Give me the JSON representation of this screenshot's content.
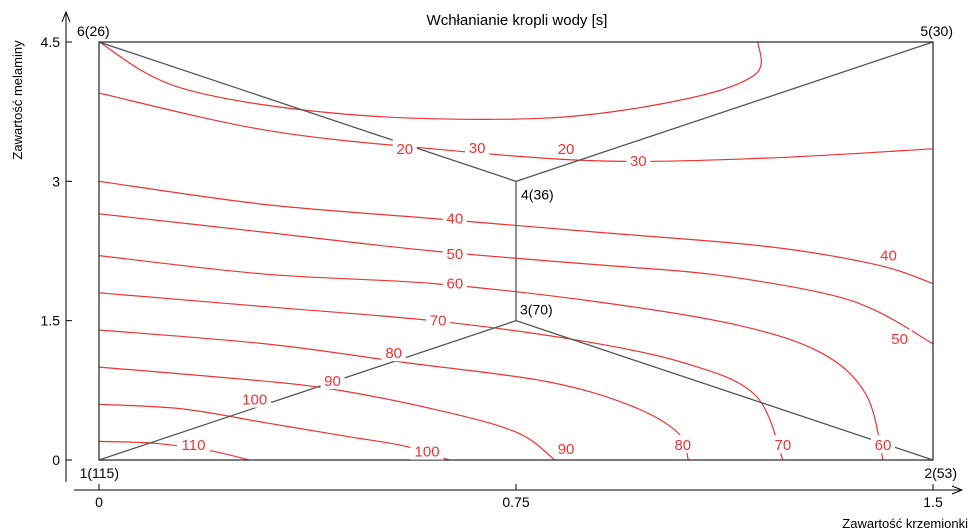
{
  "chart_data": {
    "type": "contour",
    "title": "Wchłanianie kropli wody [s]",
    "xlabel": "Zawartość krzemionki",
    "ylabel": "Zawartość melaminy",
    "xlim": [
      0,
      1.5
    ],
    "ylim": [
      0,
      4.5
    ],
    "x_ticks": [
      "0",
      "0.75",
      "1.5"
    ],
    "y_ticks": [
      "0",
      "1.5",
      "3",
      "4.5"
    ],
    "colors": {
      "contour": "#ee3333",
      "edges": "#555555",
      "axes": "#000000"
    },
    "design_points": [
      {
        "label": "1(115)",
        "x": 0,
        "y": 0,
        "value": 115,
        "anchor": "below-left"
      },
      {
        "label": "2(53)",
        "x": 1.5,
        "y": 0,
        "value": 53,
        "anchor": "below-right"
      },
      {
        "label": "3(70)",
        "x": 0.75,
        "y": 1.5,
        "value": 70,
        "anchor": "above-right"
      },
      {
        "label": "4(36)",
        "x": 0.75,
        "y": 3,
        "value": 36,
        "anchor": "below-right"
      },
      {
        "label": "5(30)",
        "x": 1.5,
        "y": 4.5,
        "value": 30,
        "anchor": "above-right"
      },
      {
        "label": "6(26)",
        "x": 0,
        "y": 4.5,
        "value": 26,
        "anchor": "above-left"
      }
    ],
    "edges": [
      [
        0,
        2
      ],
      [
        2,
        3
      ],
      [
        3,
        5
      ],
      [
        3,
        4
      ],
      [
        2,
        1
      ]
    ],
    "contours": [
      {
        "level": 20,
        "points": [
          [
            0.0,
            4.5
          ],
          [
            0.15,
            4.0
          ],
          [
            0.45,
            3.72
          ],
          [
            0.8,
            3.68
          ],
          [
            1.05,
            3.88
          ],
          [
            1.18,
            4.15
          ],
          [
            1.185,
            4.5
          ]
        ],
        "labels": [
          [
            0.55,
            3.35
          ],
          [
            0.84,
            3.35
          ]
        ]
      },
      {
        "level": 30,
        "points": [
          [
            0.0,
            3.95
          ],
          [
            0.3,
            3.55
          ],
          [
            0.6,
            3.35
          ],
          [
            0.9,
            3.22
          ],
          [
            1.2,
            3.25
          ],
          [
            1.5,
            3.35
          ]
        ],
        "labels": [
          [
            0.68,
            3.36
          ],
          [
            0.97,
            3.22
          ]
        ]
      },
      {
        "level": 40,
        "points": [
          [
            0.0,
            3.0
          ],
          [
            0.3,
            2.75
          ],
          [
            0.6,
            2.6
          ],
          [
            0.9,
            2.45
          ],
          [
            1.2,
            2.3
          ],
          [
            1.4,
            2.1
          ],
          [
            1.5,
            1.9
          ]
        ],
        "labels": [
          [
            0.64,
            2.6
          ],
          [
            1.42,
            2.2
          ]
        ]
      },
      {
        "level": 50,
        "points": [
          [
            0.0,
            2.65
          ],
          [
            0.3,
            2.45
          ],
          [
            0.6,
            2.25
          ],
          [
            0.9,
            2.1
          ],
          [
            1.1,
            2.0
          ],
          [
            1.3,
            1.8
          ],
          [
            1.4,
            1.6
          ],
          [
            1.5,
            1.25
          ]
        ],
        "labels": [
          [
            0.64,
            2.22
          ],
          [
            1.44,
            1.3
          ]
        ]
      },
      {
        "level": 60,
        "points": [
          [
            0.0,
            2.2
          ],
          [
            0.3,
            2.0
          ],
          [
            0.6,
            1.9
          ],
          [
            0.9,
            1.7
          ],
          [
            1.15,
            1.45
          ],
          [
            1.3,
            1.15
          ],
          [
            1.38,
            0.7
          ],
          [
            1.41,
            0.0
          ]
        ],
        "labels": [
          [
            0.64,
            1.9
          ],
          [
            1.41,
            0.16
          ]
        ]
      },
      {
        "level": 70,
        "points": [
          [
            0.0,
            1.8
          ],
          [
            0.3,
            1.65
          ],
          [
            0.6,
            1.5
          ],
          [
            0.85,
            1.3
          ],
          [
            1.05,
            1.05
          ],
          [
            1.18,
            0.7
          ],
          [
            1.23,
            0.0
          ]
        ],
        "labels": [
          [
            0.61,
            1.5
          ],
          [
            1.23,
            0.16
          ]
        ]
      },
      {
        "level": 80,
        "points": [
          [
            0.0,
            1.4
          ],
          [
            0.3,
            1.25
          ],
          [
            0.55,
            1.05
          ],
          [
            0.8,
            0.85
          ],
          [
            0.95,
            0.6
          ],
          [
            1.04,
            0.3
          ],
          [
            1.06,
            0.0
          ]
        ],
        "labels": [
          [
            0.53,
            1.15
          ],
          [
            1.05,
            0.16
          ]
        ]
      },
      {
        "level": 90,
        "points": [
          [
            0.0,
            1.0
          ],
          [
            0.2,
            0.9
          ],
          [
            0.4,
            0.78
          ],
          [
            0.6,
            0.55
          ],
          [
            0.75,
            0.3
          ],
          [
            0.82,
            0.0
          ]
        ],
        "labels": [
          [
            0.42,
            0.85
          ],
          [
            0.84,
            0.12
          ]
        ]
      },
      {
        "level": 100,
        "points": [
          [
            0.0,
            0.6
          ],
          [
            0.15,
            0.55
          ],
          [
            0.3,
            0.4
          ],
          [
            0.45,
            0.25
          ],
          [
            0.55,
            0.15
          ],
          [
            0.63,
            0.0
          ]
        ],
        "labels": [
          [
            0.28,
            0.65
          ],
          [
            0.59,
            0.09
          ]
        ]
      },
      {
        "level": 110,
        "points": [
          [
            0.0,
            0.2
          ],
          [
            0.1,
            0.18
          ],
          [
            0.2,
            0.1
          ],
          [
            0.27,
            0.0
          ]
        ],
        "labels": [
          [
            0.17,
            0.16
          ]
        ]
      }
    ]
  }
}
